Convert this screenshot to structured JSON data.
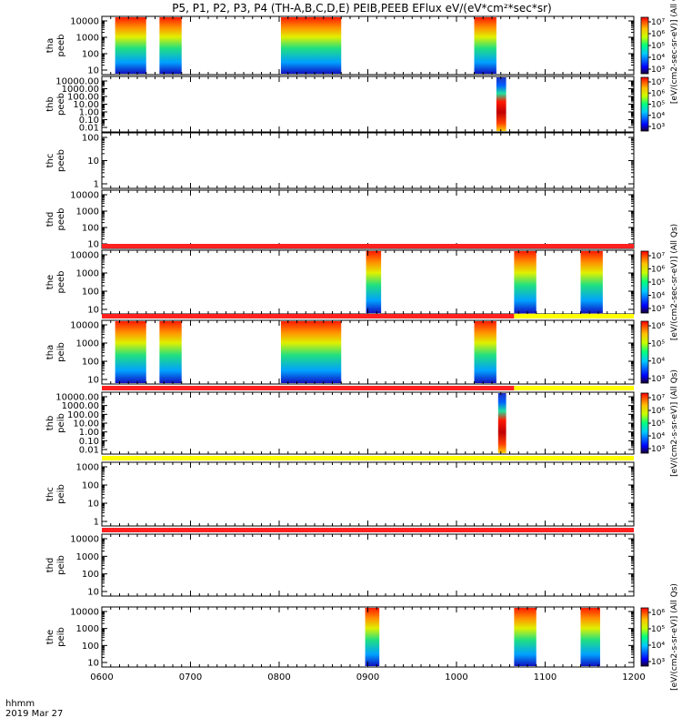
{
  "chart_data": {
    "type": "heatmap",
    "title": "P5, P1, P2, P3, P4 (TH-A,B,C,D,E) PEIB,PEEB EFlux eV/(eV*cm²*sec*sr)",
    "x_axis": {
      "ticks": [
        "0600",
        "0700",
        "0800",
        "0900",
        "1000",
        "1100",
        "1200"
      ],
      "range": [
        600,
        1200
      ],
      "label_line1": "hhmm",
      "label_line2": "2019 Mar 27"
    },
    "panels": [
      {
        "id": "tha-peeb",
        "label_line1": "tha",
        "label_line2": "peeb",
        "yscale": "log",
        "yticks": [
          "10",
          "100",
          "1000",
          "10000"
        ],
        "colorbar": true,
        "cbar_ticks": [
          "10⁷",
          "10⁶",
          "10⁵",
          "10⁴",
          "10³"
        ],
        "cbar_label": "[eV/(cm2-sec-sr-eV)] (All Qs)",
        "data_blocks": [
          [
            615,
            650
          ],
          [
            665,
            690
          ],
          [
            802,
            870
          ],
          [
            1020,
            1045
          ]
        ],
        "status_bar": null
      },
      {
        "id": "thb-peeb",
        "label_line1": "thb",
        "label_line2": "peeb",
        "yscale": "log",
        "yticks": [
          "0.01",
          "0.10",
          "1.00",
          "10.00",
          "100.00",
          "1000.00",
          "10000.00"
        ],
        "colorbar": true,
        "cbar_ticks": [
          "10⁷",
          "10⁶",
          "10⁵",
          "10⁴",
          "10³"
        ],
        "cbar_label": "",
        "data_blocks": [
          [
            1045,
            1056
          ]
        ],
        "status_bar": null
      },
      {
        "id": "thc-peeb",
        "label_line1": "thc",
        "label_line2": "peeb",
        "yscale": "log",
        "yticks": [
          "1",
          "10",
          "100"
        ],
        "colorbar": false,
        "cbar_ticks": [],
        "cbar_label": "",
        "data_blocks": [],
        "status_bar": null
      },
      {
        "id": "thd-peeb",
        "label_line1": "thd",
        "label_line2": "peeb",
        "yscale": "log",
        "yticks": [
          "10",
          "100",
          "1000",
          "10000"
        ],
        "colorbar": false,
        "cbar_ticks": [],
        "cbar_label": "",
        "data_blocks": [],
        "status_bar": null
      },
      {
        "id": "the-peeb",
        "label_line1": "the",
        "label_line2": "peeb",
        "yscale": "log",
        "yticks": [
          "10",
          "100",
          "1000",
          "10000"
        ],
        "colorbar": true,
        "cbar_ticks": [
          "10⁷",
          "10⁶",
          "10⁵",
          "10⁴",
          "10³"
        ],
        "cbar_label": "[eV/(cm2-sec-sr-eV)] (All Qs)",
        "data_blocks": [
          [
            898,
            915
          ],
          [
            1065,
            1090
          ],
          [
            1140,
            1165
          ]
        ],
        "status_bar": {
          "segments": [
            {
              "from": 600,
              "to": 1200,
              "color": "#ff2020"
            }
          ]
        }
      },
      {
        "id": "tha-peib",
        "label_line1": "tha",
        "label_line2": "peib",
        "yscale": "log",
        "yticks": [
          "10",
          "100",
          "1000",
          "10000"
        ],
        "colorbar": true,
        "cbar_ticks": [
          "10⁶",
          "10⁵",
          "10⁴",
          "10³"
        ],
        "cbar_label": "",
        "data_blocks": [
          [
            615,
            650
          ],
          [
            665,
            690
          ],
          [
            802,
            870
          ],
          [
            1020,
            1045
          ]
        ],
        "status_bar": {
          "segments": [
            {
              "from": 600,
              "to": 1065,
              "color": "#ff2020"
            },
            {
              "from": 1065,
              "to": 1200,
              "color": "#ffff00"
            }
          ]
        }
      },
      {
        "id": "thb-peib",
        "label_line1": "thb",
        "label_line2": "peib",
        "yscale": "log",
        "yticks": [
          "0.01",
          "0.10",
          "1.00",
          "10.00",
          "100.00",
          "1000.00",
          "10000.00"
        ],
        "colorbar": true,
        "cbar_ticks": [
          "10⁷",
          "10⁶",
          "10⁵",
          "10⁴",
          "10³"
        ],
        "cbar_label": "[eV/(cm2-s-sr-eV)] (All Qs)",
        "data_blocks": [
          [
            1047,
            1056
          ]
        ],
        "status_bar": {
          "segments": [
            {
              "from": 600,
              "to": 1065,
              "color": "#ff2020"
            },
            {
              "from": 1065,
              "to": 1200,
              "color": "#ffff00"
            }
          ]
        }
      },
      {
        "id": "thc-peib",
        "label_line1": "thc",
        "label_line2": "peib",
        "yscale": "log",
        "yticks": [
          "1",
          "10",
          "100",
          "1000"
        ],
        "colorbar": false,
        "cbar_ticks": [],
        "cbar_label": "",
        "data_blocks": [],
        "status_bar": {
          "segments": [
            {
              "from": 600,
              "to": 1200,
              "color": "#ffff00"
            }
          ]
        }
      },
      {
        "id": "thd-peib",
        "label_line1": "thd",
        "label_line2": "peib",
        "yscale": "log",
        "yticks": [
          "10",
          "100",
          "1000",
          "10000"
        ],
        "colorbar": false,
        "cbar_ticks": [],
        "cbar_label": "",
        "data_blocks": [],
        "status_bar": {
          "segments": [
            {
              "from": 600,
              "to": 1200,
              "color": "#ff2020"
            }
          ]
        }
      },
      {
        "id": "the-peib",
        "label_line1": "the",
        "label_line2": "peib",
        "yscale": "log",
        "yticks": [
          "10",
          "100",
          "1000",
          "10000"
        ],
        "colorbar": true,
        "cbar_ticks": [
          "10⁶",
          "10⁵",
          "10⁴",
          "10³"
        ],
        "cbar_label": "[eV/(cm2-s-sr-eV)] (All Qs)",
        "data_blocks": [
          [
            897,
            913
          ],
          [
            1065,
            1090
          ],
          [
            1140,
            1162
          ]
        ],
        "status_bar": null
      }
    ]
  }
}
